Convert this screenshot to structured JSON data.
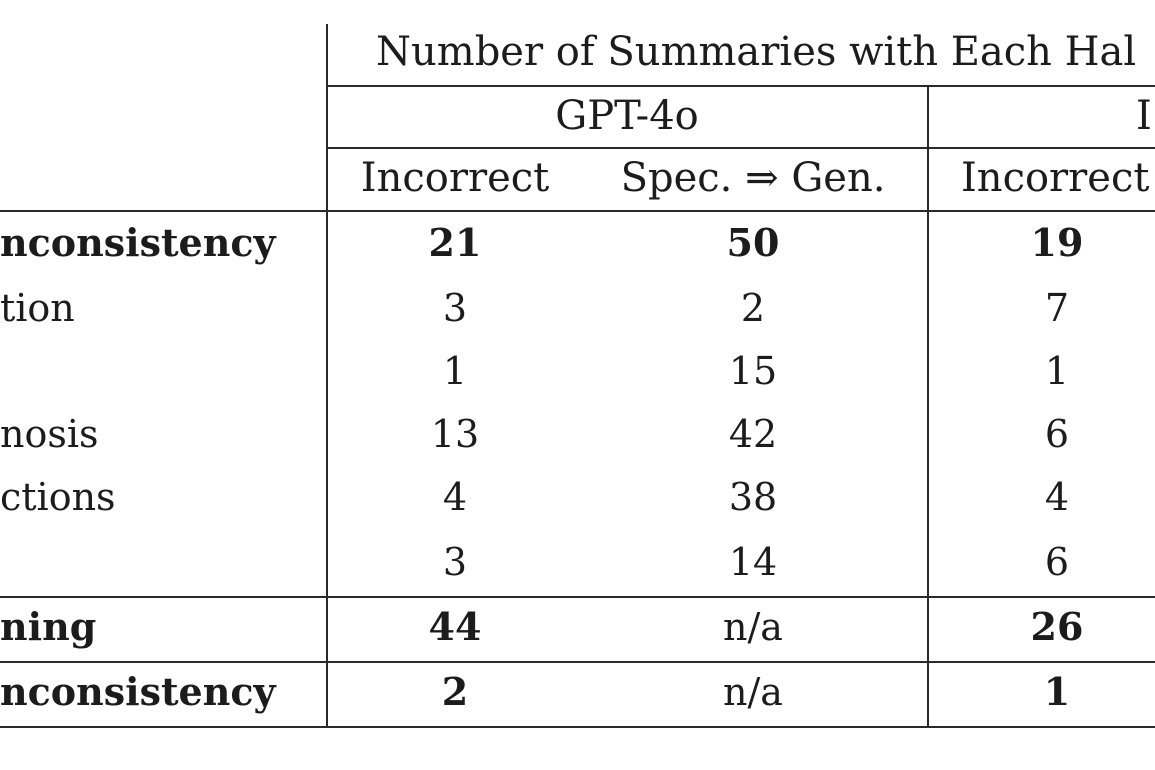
{
  "header": {
    "title": "Number of Summaries with Each Hal",
    "model_gpt": "GPT-4o",
    "model_partial": "I",
    "col_gpt_incorrect": "Incorrect",
    "col_gpt_spec": "Spec. ⇒ Gen.",
    "col_partial_incorrect": "Incorrect"
  },
  "rows": [
    {
      "label": "nconsistency",
      "bold": true,
      "gpt_incorrect": "21",
      "gpt_spec": "50",
      "partial_incorrect": "19"
    },
    {
      "label": "tion",
      "bold": false,
      "gpt_incorrect": "3",
      "gpt_spec": "2",
      "partial_incorrect": "7"
    },
    {
      "label": "",
      "bold": false,
      "gpt_incorrect": "1",
      "gpt_spec": "15",
      "partial_incorrect": "1"
    },
    {
      "label": "nosis",
      "bold": false,
      "gpt_incorrect": "13",
      "gpt_spec": "42",
      "partial_incorrect": "6"
    },
    {
      "label": "ctions",
      "bold": false,
      "gpt_incorrect": "4",
      "gpt_spec": "38",
      "partial_incorrect": "4"
    },
    {
      "label": "",
      "bold": false,
      "gpt_incorrect": "3",
      "gpt_spec": "14",
      "partial_incorrect": "6"
    },
    {
      "label": "ning",
      "bold": true,
      "gpt_incorrect": "44",
      "gpt_spec": "n/a",
      "partial_incorrect": "26"
    },
    {
      "label": "nconsistency",
      "bold": true,
      "gpt_incorrect": "2",
      "gpt_spec": "n/a",
      "partial_incorrect": "1"
    }
  ]
}
